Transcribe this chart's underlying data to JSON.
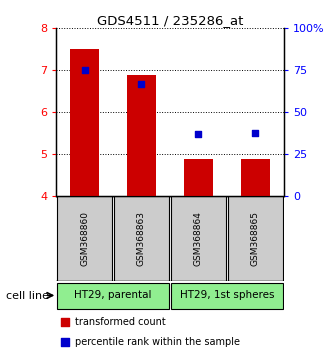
{
  "title": "GDS4511 / 235286_at",
  "samples": [
    "GSM368860",
    "GSM368863",
    "GSM368864",
    "GSM368865"
  ],
  "red_values": [
    7.5,
    6.88,
    4.87,
    4.87
  ],
  "blue_values": [
    7.0,
    6.67,
    5.47,
    5.5
  ],
  "y_min": 4.0,
  "y_max": 8.0,
  "y_ticks": [
    4,
    5,
    6,
    7,
    8
  ],
  "y_right_ticks": [
    0,
    25,
    50,
    75,
    100
  ],
  "y_right_labels": [
    "0",
    "25",
    "50",
    "75",
    "100%"
  ],
  "cell_lines": [
    {
      "label": "HT29, parental",
      "samples": [
        0,
        1
      ],
      "color": "#90ee90"
    },
    {
      "label": "HT29, 1st spheres",
      "samples": [
        2,
        3
      ],
      "color": "#90ee90"
    }
  ],
  "bar_color": "#cc0000",
  "dot_color": "#0000cc",
  "bar_width": 0.5,
  "dot_size": 25,
  "background_color": "#ffffff",
  "label_area_color": "#cccccc",
  "cell_line_label": "cell line",
  "legend_red": "transformed count",
  "legend_blue": "percentile rank within the sample"
}
